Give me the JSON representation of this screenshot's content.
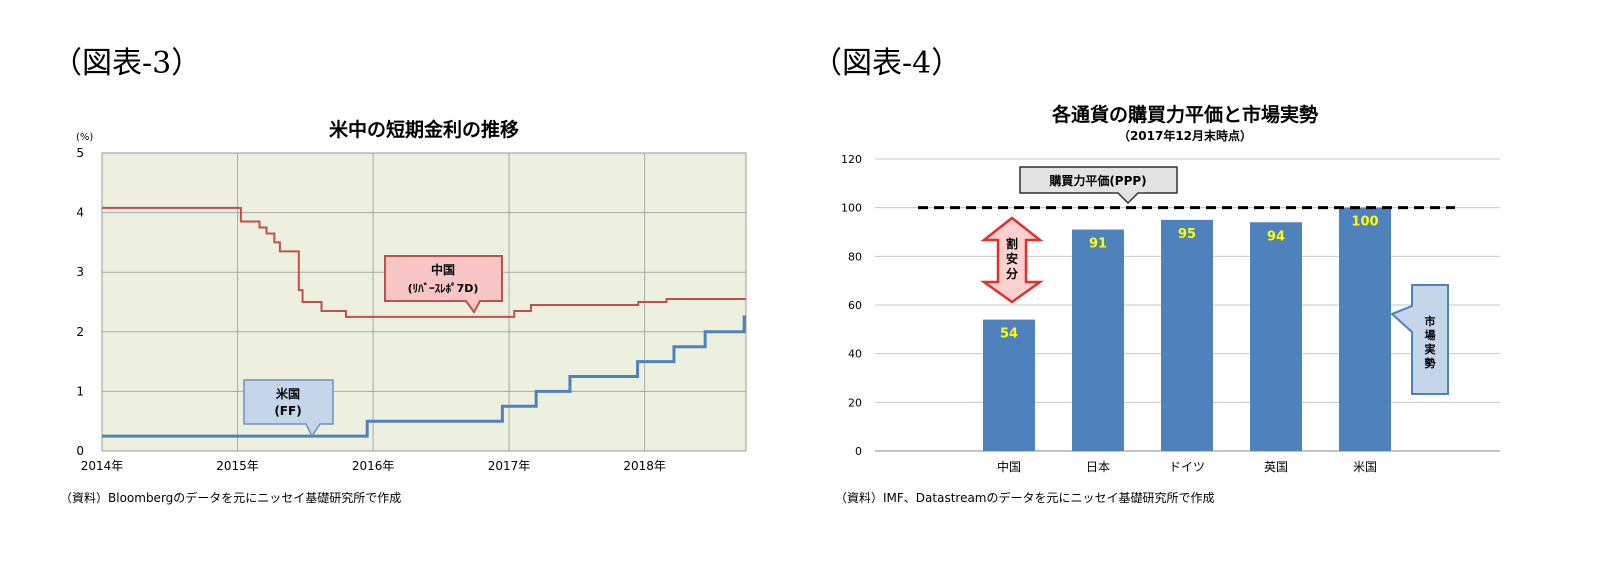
{
  "left": {
    "figure_label": "（図表-3）",
    "source": "（資料）Bloombergのデータを元にニッセイ基礎研究所で作成",
    "callout_china": {
      "line1": "中国",
      "line2": "(ﾘﾊﾞｰｽﾚﾎﾟ7D)"
    },
    "callout_us": {
      "line1": "米国",
      "line2": "(FF)"
    },
    "colors": {
      "china": "#c0504d",
      "us": "#4f81bd",
      "plot_bg": "#eef0df"
    }
  },
  "right": {
    "figure_label": "（図表-4）",
    "source": "（資料）IMF、Datastreamのデータを元にニッセイ基礎研究所で作成",
    "ppp_label": "購買力平価(PPP)",
    "cheap_label": [
      "割",
      "安",
      "分"
    ],
    "market_label": [
      "市",
      "場",
      "実",
      "勢"
    ],
    "colors": {
      "bar": "#4f81bd",
      "bar_label": "#ffff00"
    }
  },
  "chart_data": [
    {
      "type": "line",
      "title": "米中の短期金利の推移",
      "ylabel": "(%)",
      "ylim": [
        0,
        5
      ],
      "yticks": [
        "0",
        "1",
        "2",
        "3",
        "4",
        "5"
      ],
      "xlim": [
        "2014-01",
        "2018-10"
      ],
      "xticks": [
        "2014年",
        "2015年",
        "2016年",
        "2017年",
        "2018年"
      ],
      "grid": true,
      "series": [
        {
          "name": "中国",
          "step_points": [
            [
              "2014-01-01",
              4.08
            ],
            [
              "2015-01-10",
              3.85
            ],
            [
              "2015-03-01",
              3.75
            ],
            [
              "2015-03-20",
              3.65
            ],
            [
              "2015-04-10",
              3.5
            ],
            [
              "2015-04-25",
              3.35
            ],
            [
              "2015-06-15",
              2.7
            ],
            [
              "2015-06-25",
              2.5
            ],
            [
              "2015-08-15",
              2.35
            ],
            [
              "2015-10-20",
              2.25
            ],
            [
              "2017-01-15",
              2.35
            ],
            [
              "2017-03-01",
              2.45
            ],
            [
              "2017-12-15",
              2.5
            ],
            [
              "2018-03-01",
              2.55
            ],
            [
              "2018-09-30",
              2.55
            ]
          ]
        },
        {
          "name": "米国",
          "step_points": [
            [
              "2014-01-01",
              0.25
            ],
            [
              "2015-12-16",
              0.5
            ],
            [
              "2016-12-14",
              0.75
            ],
            [
              "2017-03-15",
              1.0
            ],
            [
              "2017-06-14",
              1.25
            ],
            [
              "2017-12-13",
              1.5
            ],
            [
              "2018-03-21",
              1.75
            ],
            [
              "2018-06-13",
              2.0
            ],
            [
              "2018-09-26",
              2.25
            ],
            [
              "2018-09-30",
              2.25
            ]
          ]
        }
      ]
    },
    {
      "type": "bar",
      "title": "各通貨の購買力平価と市場実勢",
      "subtitle": "（2017年12月末時点）",
      "categories": [
        "中国",
        "日本",
        "ドイツ",
        "英国",
        "米国"
      ],
      "values": [
        54,
        91,
        95,
        94,
        100
      ],
      "ylim": [
        0,
        120
      ],
      "yticks": [
        "0",
        "20",
        "40",
        "60",
        "80",
        "100",
        "120"
      ],
      "reference_line": 100,
      "grid": true
    }
  ]
}
